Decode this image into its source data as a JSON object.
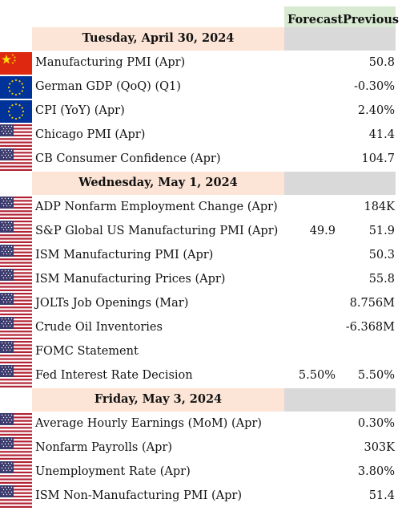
{
  "header": {
    "forecast": "Forecast",
    "previous": "Previous"
  },
  "sections": [
    {
      "date": "Tuesday, April 30, 2024",
      "events": [
        {
          "flag": "cn-flag-icon",
          "name": "Manufacturing PMI (Apr)",
          "forecast": "",
          "previous": "50.8"
        },
        {
          "flag": "eu-flag-icon",
          "name": "German GDP (QoQ) (Q1)",
          "forecast": "",
          "previous": "-0.30%"
        },
        {
          "flag": "eu-flag-icon",
          "name": "CPI (YoY) (Apr)",
          "forecast": "",
          "previous": "2.40%"
        },
        {
          "flag": "us-flag-icon",
          "name": "Chicago PMI (Apr)",
          "forecast": "",
          "previous": "41.4"
        },
        {
          "flag": "us-flag-icon",
          "name": "CB Consumer Confidence (Apr)",
          "forecast": "",
          "previous": "104.7"
        }
      ]
    },
    {
      "date": "Wednesday, May 1, 2024",
      "events": [
        {
          "flag": "us-flag-icon",
          "name": "ADP Nonfarm Employment Change (Apr)",
          "forecast": "",
          "previous": "184K"
        },
        {
          "flag": "us-flag-icon",
          "name": "S&P Global US Manufacturing PMI (Apr)",
          "forecast": "49.9",
          "previous": "51.9"
        },
        {
          "flag": "us-flag-icon",
          "name": "ISM Manufacturing PMI (Apr)",
          "forecast": "",
          "previous": "50.3"
        },
        {
          "flag": "us-flag-icon",
          "name": "ISM Manufacturing Prices (Apr)",
          "forecast": "",
          "previous": "55.8"
        },
        {
          "flag": "us-flag-icon",
          "name": "JOLTs Job Openings (Mar)",
          "forecast": "",
          "previous": "8.756M"
        },
        {
          "flag": "us-flag-icon",
          "name": "Crude Oil Inventories",
          "forecast": "",
          "previous": "-6.368M"
        },
        {
          "flag": "us-flag-icon",
          "name": "FOMC Statement",
          "forecast": "",
          "previous": ""
        },
        {
          "flag": "us-flag-icon",
          "name": "Fed Interest Rate Decision",
          "forecast": "5.50%",
          "previous": "5.50%"
        }
      ]
    },
    {
      "date": "Friday, May 3, 2024",
      "events": [
        {
          "flag": "us-flag-icon",
          "name": "Average Hourly Earnings (MoM) (Apr)",
          "forecast": "",
          "previous": "0.30%"
        },
        {
          "flag": "us-flag-icon",
          "name": "Nonfarm Payrolls (Apr)",
          "forecast": "",
          "previous": "303K"
        },
        {
          "flag": "us-flag-icon",
          "name": "Unemployment Rate (Apr)",
          "forecast": "",
          "previous": "3.80%"
        },
        {
          "flag": "us-flag-icon",
          "name": "ISM Non-Manufacturing PMI (Apr)",
          "forecast": "",
          "previous": "51.4"
        }
      ]
    }
  ]
}
